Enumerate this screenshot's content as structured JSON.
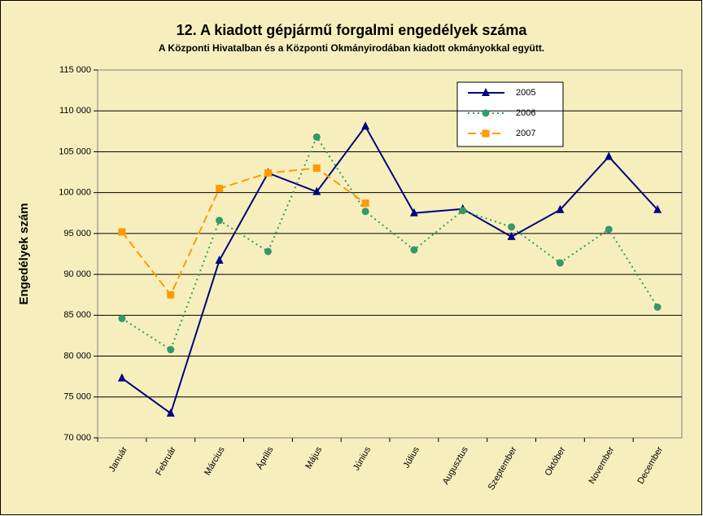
{
  "chart_data": {
    "type": "line",
    "title": "12. A  kiadott gépjármű forgalmi engedélyek száma",
    "subtitle": "A  Központi Hivatalban és a Központi Okmányirodában kiadott okmányokkal együtt.",
    "ylabel": "Engedélyek szám",
    "categories": [
      "Január",
      "Február",
      "Március",
      "Április",
      "Május",
      "Június",
      "Július",
      "Augusztus",
      "Szeptember",
      "Október",
      "November",
      "December"
    ],
    "series": [
      {
        "name": "2005",
        "color": "#000080",
        "marker": "triangle",
        "dash": "solid",
        "values": [
          77300,
          73000,
          91700,
          102400,
          100100,
          108100,
          97500,
          98000,
          94600,
          97900,
          104400,
          97900
        ]
      },
      {
        "name": "2006",
        "color": "#339966",
        "marker": "circle",
        "dash": "dotted",
        "values": [
          84600,
          80800,
          96600,
          92800,
          106800,
          97700,
          93000,
          97800,
          95800,
          91400,
          95500,
          86000
        ]
      },
      {
        "name": "2007",
        "color": "#ff9900",
        "marker": "square",
        "dash": "dashed",
        "values": [
          95200,
          87500,
          100500,
          102400,
          103000,
          98700,
          null,
          null,
          null,
          null,
          null,
          null
        ]
      }
    ],
    "ylim": [
      70000,
      115000
    ],
    "yticks": [
      {
        "value": 70000,
        "label": "70 000"
      },
      {
        "value": 75000,
        "label": "75 000"
      },
      {
        "value": 80000,
        "label": "80 000"
      },
      {
        "value": 85000,
        "label": "85 000"
      },
      {
        "value": 90000,
        "label": "90 000"
      },
      {
        "value": 95000,
        "label": "95 000"
      },
      {
        "value": 100000,
        "label": "100 000"
      },
      {
        "value": 105000,
        "label": "105 000"
      },
      {
        "value": 110000,
        "label": "110 000"
      },
      {
        "value": 115000,
        "label": "115 000"
      }
    ],
    "grid": true,
    "legend": "upper right"
  }
}
